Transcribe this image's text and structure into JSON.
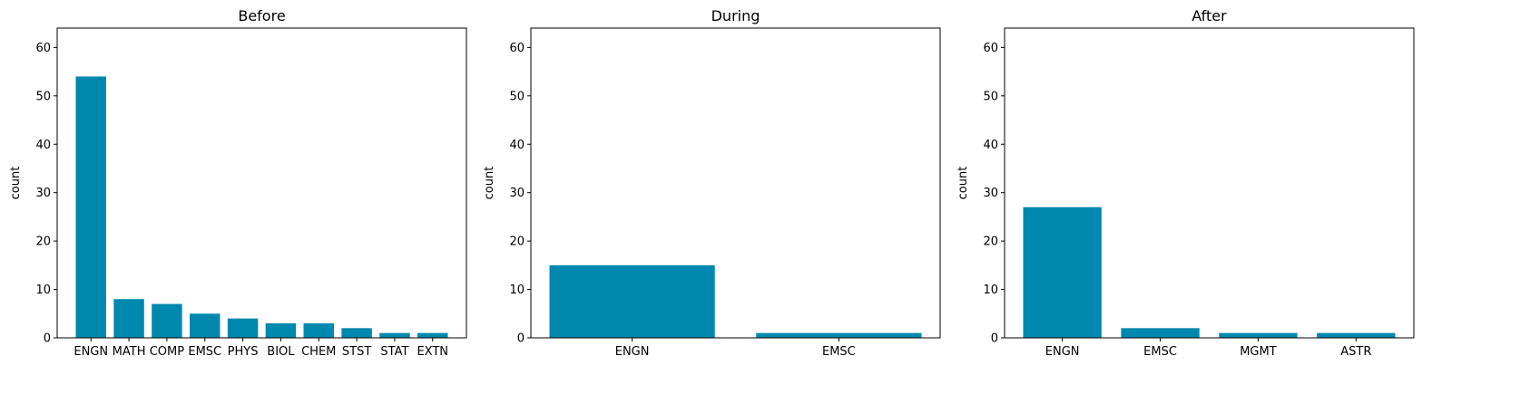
{
  "chart_data": [
    {
      "type": "bar",
      "title": "Before",
      "xlabel": "",
      "ylabel": "count",
      "categories": [
        "ENGN",
        "MATH",
        "COMP",
        "EMSC",
        "PHYS",
        "BIOL",
        "CHEM",
        "STST",
        "STAT",
        "EXTN"
      ],
      "values": [
        54,
        8,
        7,
        5,
        4,
        3,
        3,
        2,
        1,
        1
      ],
      "ylim": [
        0,
        64
      ],
      "yticks": [
        0,
        10,
        20,
        30,
        40,
        50,
        60
      ],
      "grid": false,
      "color": "#0088ae"
    },
    {
      "type": "bar",
      "title": "During",
      "xlabel": "",
      "ylabel": "count",
      "categories": [
        "ENGN",
        "EMSC"
      ],
      "values": [
        15,
        1
      ],
      "ylim": [
        0,
        64
      ],
      "yticks": [
        0,
        10,
        20,
        30,
        40,
        50,
        60
      ],
      "grid": false,
      "color": "#0088ae"
    },
    {
      "type": "bar",
      "title": "After",
      "xlabel": "",
      "ylabel": "count",
      "categories": [
        "ENGN",
        "EMSC",
        "MGMT",
        "ASTR"
      ],
      "values": [
        27,
        2,
        1,
        1
      ],
      "ylim": [
        0,
        64
      ],
      "yticks": [
        0,
        10,
        20,
        30,
        40,
        50,
        60
      ],
      "grid": false,
      "color": "#0088ae"
    }
  ]
}
